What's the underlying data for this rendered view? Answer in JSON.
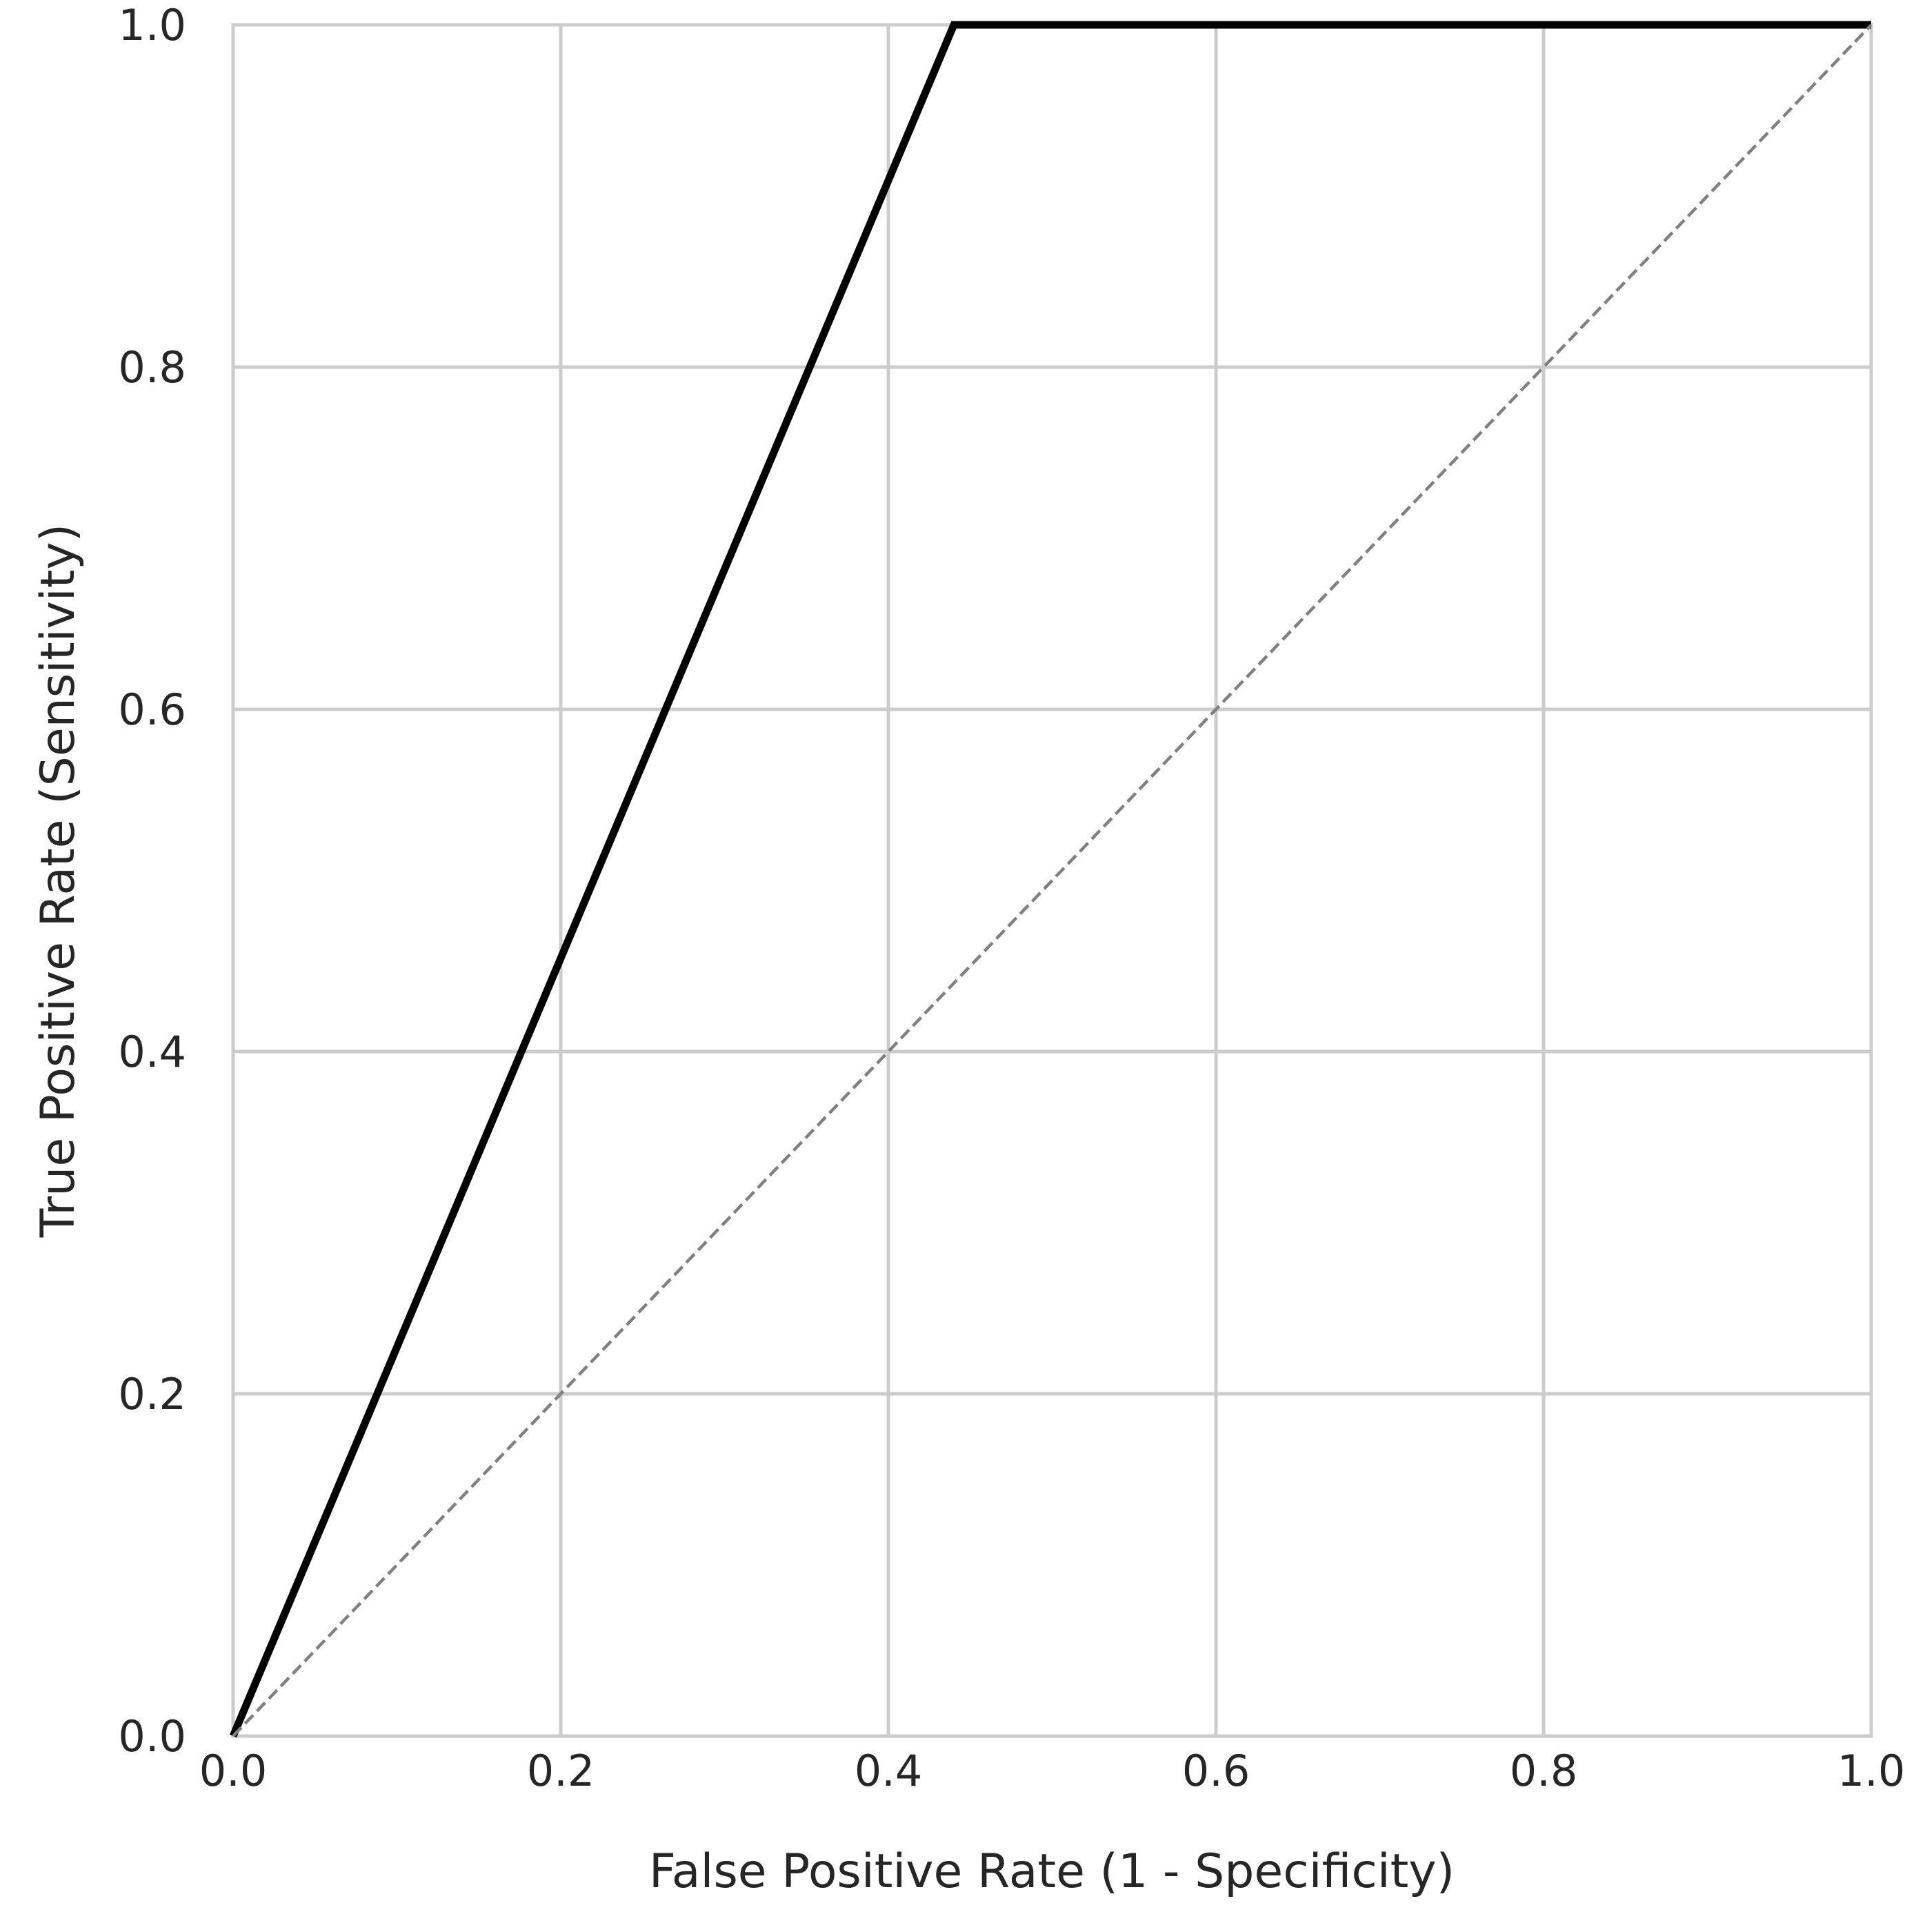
{
  "chart_data": {
    "type": "line",
    "title": "",
    "xlabel": "False Positive Rate (1 - Specificity)",
    "ylabel": "True Positive Rate (Sensitivity)",
    "xlim": [
      0.0,
      1.0
    ],
    "ylim": [
      0.0,
      1.0
    ],
    "grid": true,
    "x_ticks": [
      "0.0",
      "0.2",
      "0.4",
      "0.6",
      "0.8",
      "1.0"
    ],
    "y_ticks": [
      "0.0",
      "0.2",
      "0.4",
      "0.6",
      "0.8",
      "1.0"
    ],
    "series": [
      {
        "style": "solid",
        "color": "#000000",
        "x": [
          0.0,
          0.44,
          1.0
        ],
        "y": [
          0.0,
          1.0,
          1.0
        ]
      },
      {
        "style": "dashed",
        "color": "#808080",
        "x": [
          0.0,
          1.0
        ],
        "y": [
          0.0,
          1.0
        ]
      }
    ],
    "colors": {
      "grid": "#cccccc",
      "frame": "#cccccc",
      "text": "#262626"
    }
  }
}
